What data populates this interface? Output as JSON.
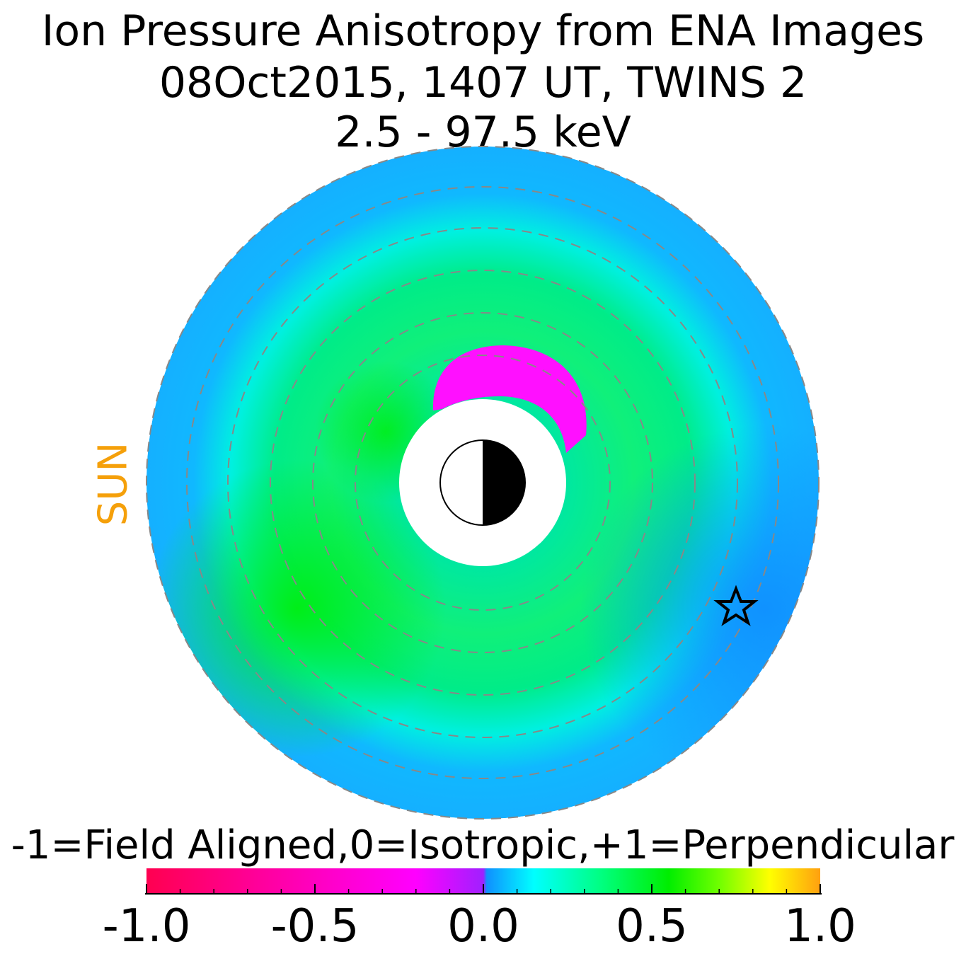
{
  "title": {
    "line1": "Ion Pressure Anisotropy from  ENA Images",
    "line2": "08Oct2015, 1407 UT,  TWINS 2",
    "line3": "2.5 - 97.5 keV"
  },
  "sun_label": "SUN",
  "colorbar": {
    "title": "-1=Field Aligned,0=Isotropic,+1=Perpendicular",
    "range": [
      -1.0,
      1.0
    ],
    "ticks": [
      "-1.0",
      "-0.5",
      "0.0",
      "0.5",
      "1.0"
    ],
    "stops": [
      {
        "v": -1.0,
        "color": "#ff0050"
      },
      {
        "v": -0.5,
        "color": "#ff00c0"
      },
      {
        "v": -0.2,
        "color": "#ff00ff"
      },
      {
        "v": 0.0,
        "color": "#a020ff"
      },
      {
        "v": 0.01,
        "color": "#1090ff"
      },
      {
        "v": 0.15,
        "color": "#00ffff"
      },
      {
        "v": 0.35,
        "color": "#00ff80"
      },
      {
        "v": 0.55,
        "color": "#00ee00"
      },
      {
        "v": 0.7,
        "color": "#70ff00"
      },
      {
        "v": 0.85,
        "color": "#ffff00"
      },
      {
        "v": 1.0,
        "color": "#ffa010"
      }
    ]
  },
  "chart_data": {
    "type": "heatmap",
    "projection": "polar, sun to the left",
    "value_range": [
      -1.0,
      1.0
    ],
    "regions": [
      {
        "region": "outer ring",
        "approx_value": 0.05
      },
      {
        "region": "dusk/dawn inner ring",
        "approx_value": 0.45
      },
      {
        "region": "midnight side outer ring",
        "approx_value": 0.02
      },
      {
        "region": "near-Earth pre-noon patch",
        "approx_value": -0.3
      }
    ],
    "grid": "dashed concentric circles",
    "colors": {
      "grid": "#888888",
      "sun_label": "#f5a00a"
    }
  }
}
